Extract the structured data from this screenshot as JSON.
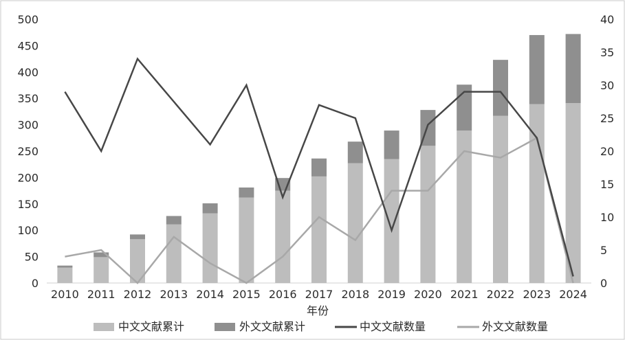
{
  "chart_data": {
    "type": "bar",
    "categories": [
      "2010",
      "2011",
      "2012",
      "2013",
      "2014",
      "2015",
      "2016",
      "2017",
      "2018",
      "2019",
      "2020",
      "2021",
      "2022",
      "2023",
      "2024"
    ],
    "xlabel": "年份",
    "ylim_left": [
      0,
      500
    ],
    "ylim_right": [
      0,
      40
    ],
    "yticks_left": [
      "0",
      "50",
      "100",
      "150",
      "200",
      "250",
      "300",
      "350",
      "400",
      "450",
      "500"
    ],
    "yticks_right": [
      "0",
      "5",
      "10",
      "15",
      "20",
      "25",
      "30",
      "35",
      "40"
    ],
    "grid": false,
    "legend_position": "bottom",
    "series": [
      {
        "name": "中文文献累计",
        "kind": "bar",
        "axis": "left",
        "color": "#bdbdbd",
        "values": [
          29,
          49,
          83,
          111,
          132,
          162,
          175,
          202,
          227,
          235,
          260,
          289,
          317,
          339,
          341
        ]
      },
      {
        "name": "外文文献累计",
        "kind": "bar",
        "axis": "left",
        "color": "#8f8f8f",
        "values": [
          4,
          9,
          9,
          16,
          19,
          19,
          24,
          34,
          41,
          54,
          68,
          87,
          106,
          131,
          131
        ]
      },
      {
        "name": "中文文献数量",
        "kind": "line",
        "axis": "right",
        "color": "#474747",
        "values": [
          29,
          20,
          34,
          27.5,
          21,
          30,
          13,
          27,
          25,
          8,
          24,
          29,
          29,
          22,
          1
        ]
      },
      {
        "name": "外文文献数量",
        "kind": "line",
        "axis": "right",
        "color": "#a8a8a8",
        "values": [
          4,
          5,
          0,
          7,
          3,
          0,
          4,
          10,
          6.5,
          14,
          14,
          20,
          19,
          22,
          0
        ]
      }
    ]
  }
}
